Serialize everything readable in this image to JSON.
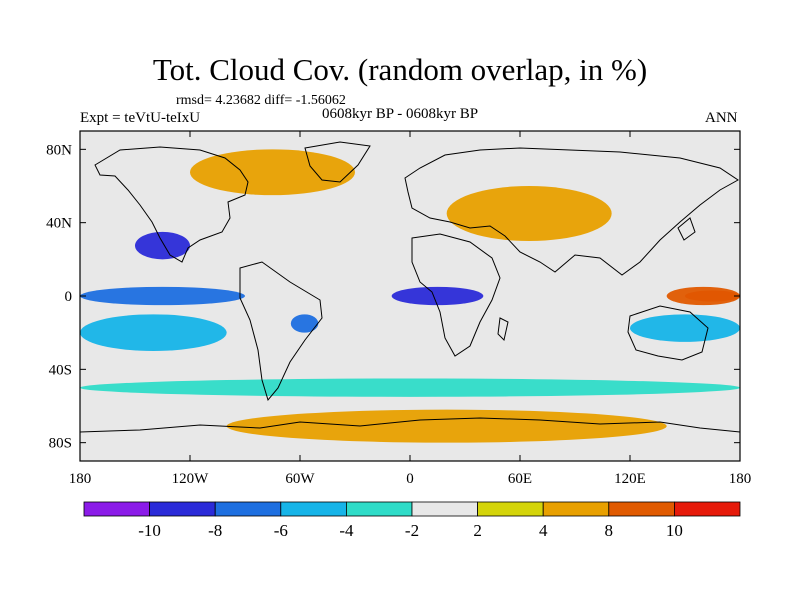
{
  "title": "Tot. Cloud Cov. (random overlap, in %)",
  "stats": "rmsd= 4.23682 diff= -1.56062",
  "experiment": "Expt = teVtU-teIxU",
  "period": "0608kyr BP - 0608kyr BP",
  "season": "ANN",
  "map": {
    "projection": "cylindrical-equidistant",
    "lon_range": [
      -180,
      180
    ],
    "lat_range": [
      -90,
      90
    ],
    "lon_ticks": [
      {
        "value": -180,
        "label": "180"
      },
      {
        "value": -120,
        "label": "120W"
      },
      {
        "value": -60,
        "label": "60W"
      },
      {
        "value": 0,
        "label": "0"
      },
      {
        "value": 60,
        "label": "60E"
      },
      {
        "value": 120,
        "label": "120E"
      },
      {
        "value": 180,
        "label": "180"
      }
    ],
    "lat_ticks": [
      {
        "value": 80,
        "label": "80N"
      },
      {
        "value": 40,
        "label": "40N"
      },
      {
        "value": 0,
        "label": "0"
      },
      {
        "value": -40,
        "label": "40S"
      },
      {
        "value": -80,
        "label": "80S"
      }
    ]
  },
  "colorbar": {
    "labels": [
      "-10",
      "-8",
      "-6",
      "-4",
      "-2",
      "2",
      "4",
      "8",
      "10"
    ],
    "colors": [
      "#8b1be8",
      "#2b2bd8",
      "#1e6fe0",
      "#16b4e8",
      "#2fdcc8",
      "#e8e8e8",
      "#d4d40a",
      "#e8a000",
      "#e05a00",
      "#e61a0a"
    ]
  },
  "chart_data": {
    "type": "heatmap",
    "title": "Tot. Cloud Cov. (random overlap, in %)",
    "xlabel": "",
    "ylabel": "",
    "xlim": [
      -180,
      180
    ],
    "ylim": [
      -90,
      90
    ],
    "levels": [
      -10,
      -8,
      -6,
      -4,
      -2,
      2,
      4,
      8,
      10
    ],
    "features": [
      {
        "lon": [
          -180,
          -90
        ],
        "lat": [
          -5,
          5
        ],
        "value": -7,
        "desc": "central/east Pacific equatorial band"
      },
      {
        "lon": [
          -150,
          -120
        ],
        "lat": [
          20,
          35
        ],
        "value": -10
      },
      {
        "lon": [
          150,
          180
        ],
        "lat": [
          -3,
          3
        ],
        "value": 11
      },
      {
        "lon": [
          140,
          180
        ],
        "lat": [
          -5,
          5
        ],
        "value": 9
      },
      {
        "lon": [
          -65,
          -50
        ],
        "lat": [
          -20,
          -10
        ],
        "value": -8
      },
      {
        "lon": [
          -10,
          40
        ],
        "lat": [
          -5,
          5
        ],
        "value": -9
      },
      {
        "lon": [
          20,
          110
        ],
        "lat": [
          30,
          60
        ],
        "value": 4
      },
      {
        "lon": [
          -120,
          -30
        ],
        "lat": [
          55,
          80
        ],
        "value": 6
      },
      {
        "lon": [
          -100,
          140
        ],
        "lat": [
          -80,
          -62
        ],
        "value": 7
      },
      {
        "lon": [
          -180,
          180
        ],
        "lat": [
          -55,
          -45
        ],
        "value": -4
      },
      {
        "lon": [
          -180,
          -100
        ],
        "lat": [
          -30,
          -10
        ],
        "value": -6
      },
      {
        "lon": [
          120,
          180
        ],
        "lat": [
          -25,
          -10
        ],
        "value": -5
      }
    ]
  }
}
